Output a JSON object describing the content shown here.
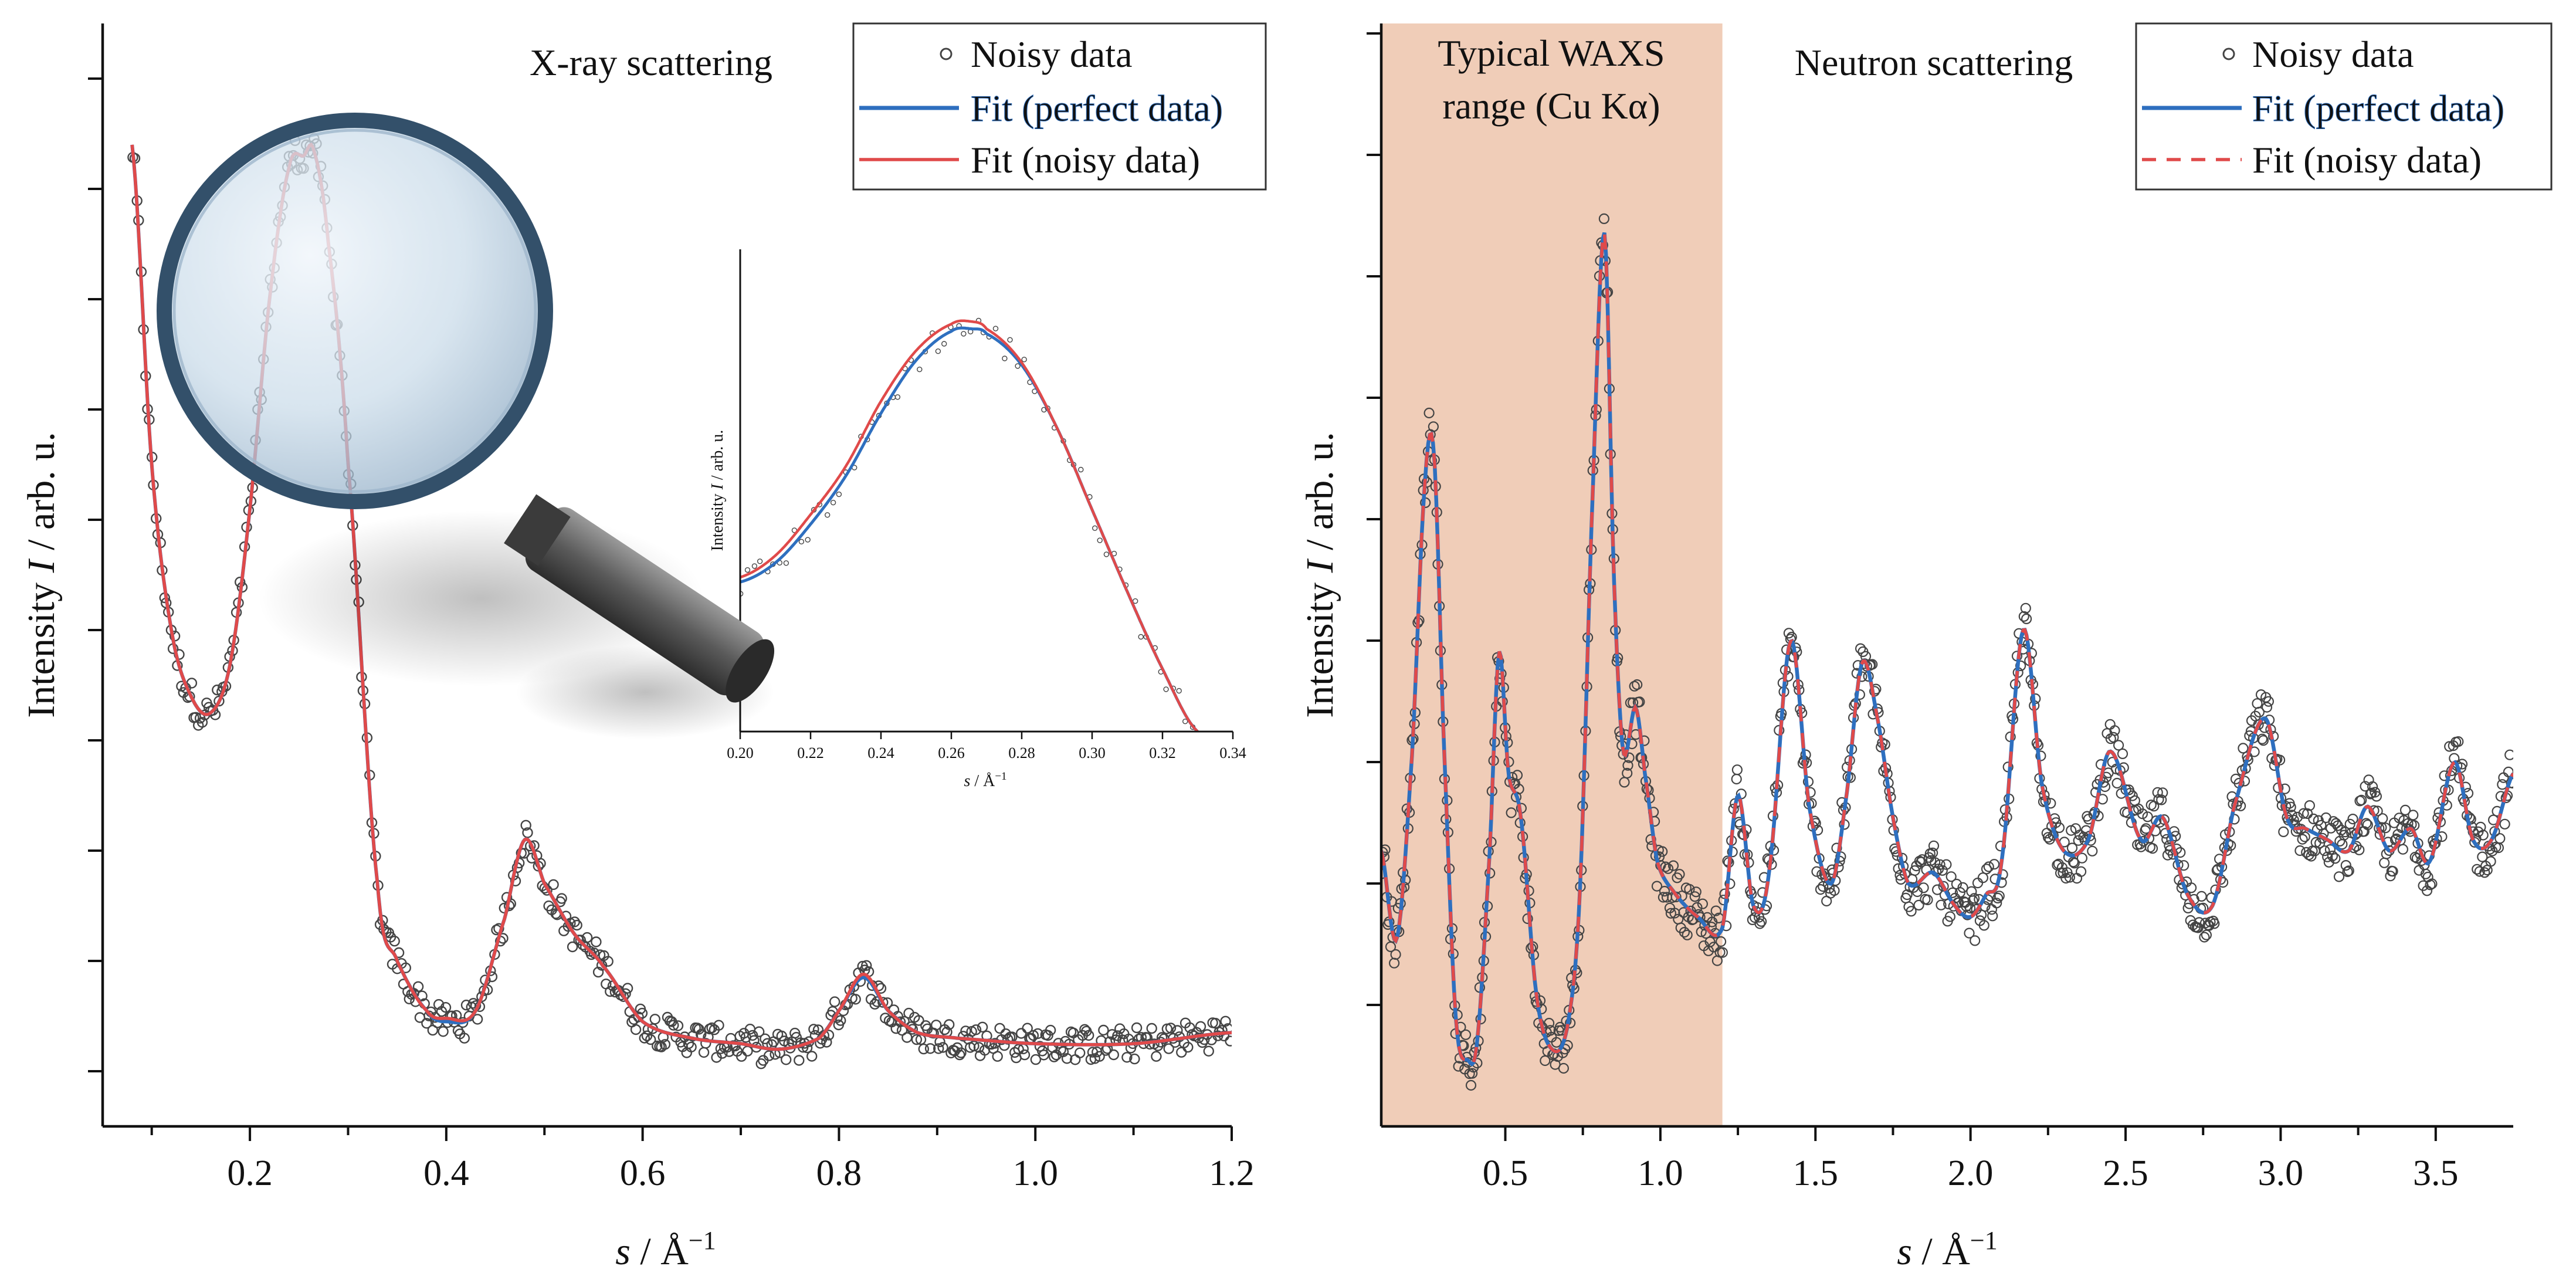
{
  "chart_data": [
    {
      "panel": "left",
      "type": "line",
      "title": "X-ray scattering",
      "xlabel_italic": "s",
      "xlabel_rest": " / Å",
      "xlabel_sup": "−1",
      "ylabel_prefix": "Intensity ",
      "ylabel_italic": "I",
      "ylabel_suffix": " / arb. u.",
      "xlim": [
        0.05,
        1.2
      ],
      "ylim": [
        0,
        10
      ],
      "x_ticks": [
        0.2,
        0.4,
        0.6,
        0.8,
        1.0,
        1.2
      ],
      "x_tick_labels": [
        "0.2",
        "0.4",
        "0.6",
        "0.8",
        "1.0",
        "1.2"
      ],
      "y_tick_count": 10,
      "legend_position": "top-right",
      "legend": [
        {
          "label": "Noisy data",
          "style": "open-circle"
        },
        {
          "label": "Fit (perfect data)",
          "style": "solid",
          "color": "#2e6fbf"
        },
        {
          "label": "Fit (noisy data)",
          "style": "solid",
          "color": "#e04a4a"
        }
      ],
      "series": [
        {
          "name": "Fit (perfect data)",
          "x": [
            0.08,
            0.1,
            0.12,
            0.14,
            0.16,
            0.18,
            0.2,
            0.22,
            0.24,
            0.255,
            0.265,
            0.28,
            0.3,
            0.33,
            0.35,
            0.38,
            0.4,
            0.43,
            0.46,
            0.48,
            0.5,
            0.53,
            0.56,
            0.6,
            0.65,
            0.7,
            0.74,
            0.78,
            0.8,
            0.825,
            0.85,
            0.88,
            0.92,
            1.0,
            1.1,
            1.2
          ],
          "y": [
            8.9,
            6.0,
            4.5,
            3.9,
            3.75,
            4.2,
            5.6,
            7.5,
            8.7,
            8.8,
            8.85,
            8.0,
            6.0,
            2.2,
            1.5,
            1.05,
            0.95,
            1.05,
            1.9,
            2.6,
            2.2,
            1.75,
            1.45,
            0.95,
            0.8,
            0.75,
            0.7,
            0.8,
            1.05,
            1.35,
            1.05,
            0.85,
            0.8,
            0.75,
            0.75,
            0.85
          ]
        },
        {
          "name": "Fit (noisy data)",
          "x": [
            0.08,
            0.1,
            0.12,
            0.14,
            0.16,
            0.18,
            0.2,
            0.22,
            0.24,
            0.255,
            0.265,
            0.28,
            0.3,
            0.33,
            0.35,
            0.38,
            0.4,
            0.43,
            0.46,
            0.48,
            0.5,
            0.53,
            0.56,
            0.6,
            0.65,
            0.7,
            0.74,
            0.78,
            0.8,
            0.825,
            0.85,
            0.88,
            0.92,
            1.0,
            1.1,
            1.2
          ],
          "y": [
            8.9,
            6.0,
            4.5,
            3.9,
            3.75,
            4.2,
            5.6,
            7.5,
            8.7,
            8.8,
            8.85,
            8.0,
            6.0,
            2.2,
            1.5,
            1.05,
            0.98,
            1.05,
            1.9,
            2.6,
            2.2,
            1.75,
            1.45,
            0.95,
            0.8,
            0.75,
            0.7,
            0.8,
            1.05,
            1.38,
            1.05,
            0.85,
            0.8,
            0.75,
            0.75,
            0.85
          ]
        },
        {
          "name": "Noisy data",
          "style": "scatter",
          "follows": "Fit (perfect data)",
          "approx_noise": 0.15
        }
      ],
      "inset": {
        "xlabel_italic": "s",
        "xlabel_rest": " / Å",
        "xlabel_sup": "−1",
        "ylabel_prefix": "Intensity ",
        "ylabel_italic": "I",
        "ylabel_suffix": " / arb. u.",
        "xlim": [
          0.2,
          0.34
        ],
        "ylim": [
          0,
          10
        ],
        "x_ticks": [
          0.2,
          0.22,
          0.24,
          0.26,
          0.28,
          0.3,
          0.32,
          0.34
        ],
        "x_tick_labels": [
          "0.20",
          "0.22",
          "0.24",
          "0.26",
          "0.28",
          "0.30",
          "0.32",
          "0.34"
        ],
        "series": [
          {
            "name": "Fit (perfect data)",
            "x": [
              0.2,
              0.21,
              0.22,
              0.23,
              0.24,
              0.25,
              0.26,
              0.266,
              0.27,
              0.28,
              0.29,
              0.3,
              0.31,
              0.32,
              0.33
            ],
            "y": [
              3.1,
              3.5,
              4.3,
              5.3,
              6.6,
              7.7,
              8.3,
              8.35,
              8.25,
              7.6,
              6.3,
              4.6,
              2.9,
              1.3,
              0.0
            ]
          },
          {
            "name": "Fit (noisy data)",
            "x": [
              0.2,
              0.21,
              0.22,
              0.23,
              0.24,
              0.25,
              0.26,
              0.266,
              0.27,
              0.28,
              0.29,
              0.3,
              0.31,
              0.32,
              0.33
            ],
            "y": [
              3.2,
              3.65,
              4.5,
              5.5,
              6.85,
              7.9,
              8.45,
              8.5,
              8.35,
              7.65,
              6.3,
              4.6,
              2.9,
              1.3,
              0.0
            ]
          },
          {
            "name": "Noisy data",
            "style": "scatter",
            "follows": "Fit (perfect data)",
            "approx_noise": 0.3
          }
        ]
      }
    },
    {
      "panel": "right",
      "type": "line",
      "title": "Neutron scattering",
      "xlabel_italic": "s",
      "xlabel_rest": " / Å",
      "xlabel_sup": "−1",
      "ylabel_prefix": "Intensity ",
      "ylabel_italic": "I",
      "ylabel_suffix": " / arb. u.",
      "xlim": [
        0.1,
        3.75
      ],
      "ylim": [
        0,
        10
      ],
      "x_ticks": [
        0.5,
        1.0,
        1.5,
        2.0,
        2.5,
        3.0,
        3.5
      ],
      "x_tick_labels": [
        "0.5",
        "1.0",
        "1.5",
        "2.0",
        "2.5",
        "3.0",
        "3.5"
      ],
      "y_tick_count": 9,
      "legend_position": "top-right",
      "legend": [
        {
          "label": "Noisy data",
          "style": "open-circle"
        },
        {
          "label": "Fit (perfect data)",
          "style": "solid",
          "color": "#2e6fbf"
        },
        {
          "label": "Fit (noisy data)",
          "style": "dashed",
          "color": "#e04a4a"
        }
      ],
      "shaded_region": {
        "x0": 0.1,
        "x1": 1.2,
        "label_line1": "Typical WAXS",
        "label_line2": "range (Cu Kα)",
        "color": "#f0cdb8"
      },
      "series": [
        {
          "name": "Fit (perfect data)",
          "x": [
            0.1,
            0.15,
            0.2,
            0.24,
            0.27,
            0.3,
            0.34,
            0.38,
            0.41,
            0.45,
            0.48,
            0.51,
            0.55,
            0.6,
            0.65,
            0.7,
            0.74,
            0.78,
            0.82,
            0.85,
            0.88,
            0.92,
            0.95,
            0.99,
            1.05,
            1.12,
            1.2,
            1.25,
            1.3,
            1.35,
            1.42,
            1.48,
            1.55,
            1.6,
            1.65,
            1.7,
            1.75,
            1.8,
            1.88,
            1.95,
            2.0,
            2.05,
            2.1,
            2.17,
            2.23,
            2.3,
            2.38,
            2.45,
            2.55,
            2.62,
            2.7,
            2.78,
            2.85,
            2.95,
            3.02,
            3.08,
            3.15,
            3.22,
            3.28,
            3.35,
            3.42,
            3.48,
            3.56,
            3.62,
            3.68,
            3.75
          ],
          "y": [
            2.5,
            1.7,
            3.4,
            5.8,
            6.1,
            3.6,
            1.0,
            0.6,
            0.8,
            2.5,
            4.3,
            3.2,
            2.8,
            1.2,
            0.7,
            0.9,
            2.1,
            5.6,
            8.1,
            5.0,
            3.4,
            3.8,
            3.2,
            2.4,
            2.1,
            1.9,
            1.8,
            3.0,
            2.0,
            2.3,
            4.4,
            2.9,
            2.2,
            3.0,
            4.2,
            3.7,
            2.8,
            2.2,
            2.3,
            2.0,
            1.9,
            2.1,
            2.4,
            4.5,
            3.1,
            2.5,
            2.6,
            3.4,
            2.6,
            2.8,
            2.1,
            2.0,
            2.9,
            3.7,
            2.8,
            2.7,
            2.6,
            2.5,
            2.9,
            2.5,
            2.7,
            2.4,
            3.3,
            2.6,
            2.6,
            3.2
          ]
        },
        {
          "name": "Fit (noisy data)",
          "x": [
            0.1,
            0.15,
            0.2,
            0.24,
            0.27,
            0.3,
            0.34,
            0.38,
            0.41,
            0.45,
            0.48,
            0.51,
            0.55,
            0.6,
            0.65,
            0.7,
            0.74,
            0.78,
            0.82,
            0.85,
            0.88,
            0.92,
            0.95,
            0.99,
            1.05,
            1.12,
            1.2,
            1.25,
            1.3,
            1.35,
            1.42,
            1.48,
            1.55,
            1.6,
            1.65,
            1.7,
            1.75,
            1.8,
            1.88,
            1.95,
            2.0,
            2.05,
            2.1,
            2.17,
            2.23,
            2.3,
            2.38,
            2.45,
            2.55,
            2.62,
            2.7,
            2.78,
            2.85,
            2.95,
            3.02,
            3.08,
            3.15,
            3.22,
            3.28,
            3.35,
            3.42,
            3.48,
            3.56,
            3.62,
            3.68,
            3.75
          ],
          "y": [
            2.5,
            1.7,
            3.4,
            5.8,
            6.1,
            3.6,
            1.0,
            0.6,
            0.8,
            2.5,
            4.3,
            3.2,
            2.8,
            1.2,
            0.7,
            0.9,
            2.1,
            5.6,
            8.1,
            5.0,
            3.4,
            3.8,
            3.2,
            2.4,
            2.1,
            1.9,
            1.8,
            3.0,
            2.0,
            2.3,
            4.4,
            2.9,
            2.2,
            3.0,
            4.2,
            3.7,
            2.8,
            2.2,
            2.3,
            2.0,
            1.9,
            2.1,
            2.4,
            4.5,
            3.1,
            2.5,
            2.6,
            3.4,
            2.6,
            2.8,
            2.1,
            2.0,
            2.9,
            3.7,
            2.8,
            2.7,
            2.6,
            2.5,
            2.9,
            2.5,
            2.7,
            2.4,
            3.3,
            2.6,
            2.6,
            3.2
          ]
        },
        {
          "name": "Noisy data",
          "style": "scatter",
          "follows": "Fit (perfect data)",
          "approx_noise": 0.25
        }
      ]
    }
  ],
  "colors": {
    "fit_perfect": "#2e6fbf",
    "fit_noisy": "#e04a4a",
    "marker": "#444444",
    "shade": "#f0cdb8",
    "lens_glass": "#c6d8e6",
    "lens_rim": "#33506a",
    "handle": "#555555"
  },
  "icons": {
    "magnifier": "magnifying-glass-icon"
  }
}
